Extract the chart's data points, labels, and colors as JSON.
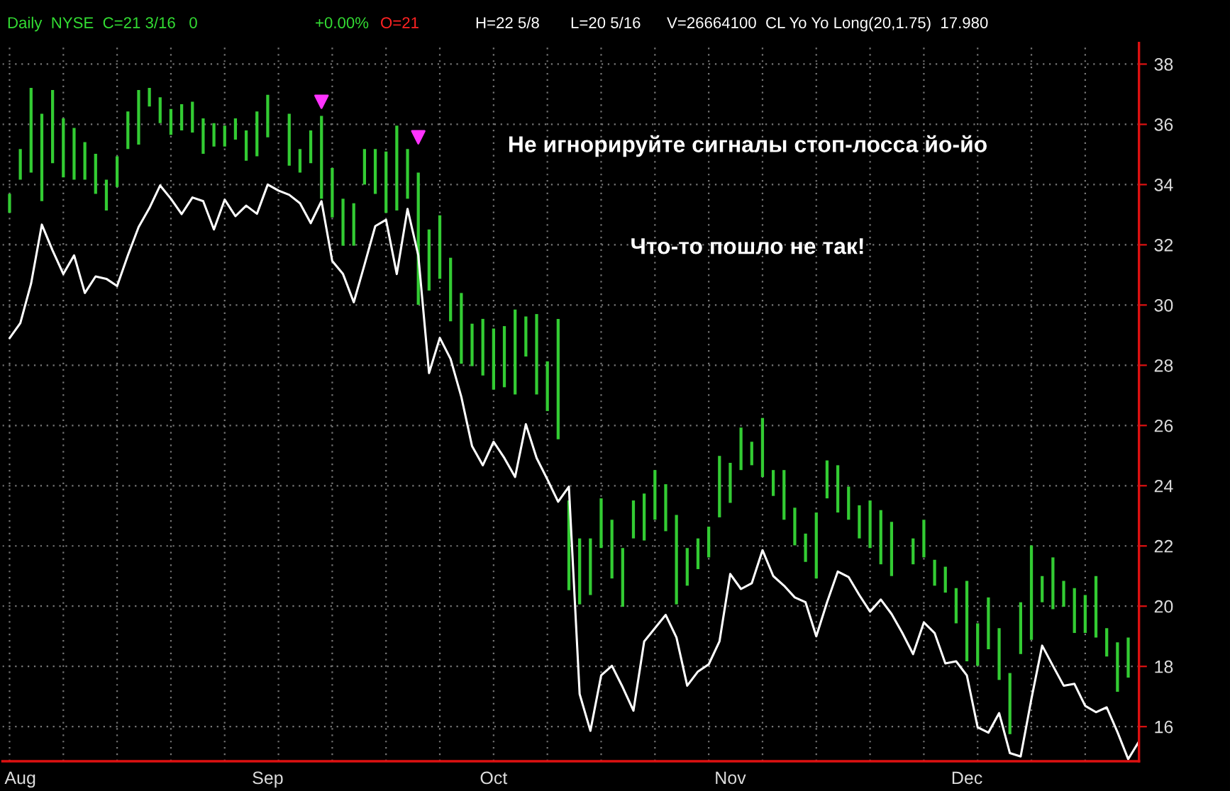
{
  "chart_data": {
    "type": "bar",
    "annotations": [
      "Daily  NYSE  C=21 3/16   0",
      "+0.00%",
      "O=21",
      "H=22 5/8",
      "L=20 5/16",
      "V=26664100  CL Yo Yo Long(20,1.75)  17.980",
      "Не игнорируйте сигналы стоп-лосса йо-йо",
      "Что-то пошло не так!"
    ],
    "categories": [
      null,
      "Aug",
      null,
      null,
      null,
      null,
      null,
      null,
      null,
      null,
      null,
      null,
      null,
      null,
      null,
      null,
      null,
      null,
      null,
      null,
      null,
      null,
      null,
      null,
      "Sep",
      null,
      null,
      null,
      null,
      null,
      null,
      null,
      null,
      null,
      null,
      null,
      null,
      null,
      null,
      null,
      null,
      null,
      null,
      null,
      null,
      "Oct",
      null,
      null,
      null,
      null,
      null,
      null,
      null,
      null,
      null,
      null,
      null,
      null,
      null,
      null,
      null,
      null,
      null,
      null,
      null,
      null,
      null,
      "Nov",
      null,
      null,
      null,
      null,
      null,
      null,
      null,
      null,
      null,
      null,
      null,
      null,
      null,
      null,
      null,
      null,
      null,
      null,
      null,
      null,
      null,
      "Dec",
      null,
      null,
      null,
      null,
      null,
      null,
      null,
      null,
      null,
      null,
      null,
      null,
      null,
      null,
      null,
      null
    ],
    "series": [
      {
        "color": "#33cc33",
        "base": [
          33.06,
          34.16,
          34.4,
          33.45,
          34.71,
          34.24,
          34.16,
          34.16,
          33.69,
          33.14,
          33.92,
          35.18,
          35.33,
          36.59,
          36.04,
          35.65,
          35.8,
          35.73,
          35.02,
          35.26,
          35.26,
          35.49,
          34.79,
          34.94,
          35.57,
          null,
          34.63,
          34.4,
          34.71,
          33.53,
          32.91,
          31.97,
          31.97,
          34.0,
          33.69,
          33.06,
          33.14,
          33.53,
          30.01,
          30.48,
          30.87,
          29.46,
          28.05,
          27.97,
          27.66,
          27.19,
          27.27,
          27.03,
          28.29,
          27.03,
          26.48,
          25.54,
          20.53,
          20.06,
          20.37,
          21.93,
          20.92,
          19.98,
          22.25,
          22.18,
          22.87,
          22.49,
          20.06,
          20.68,
          21.23,
          21.62,
          22.95,
          23.43,
          24.52,
          24.68,
          24.29,
          23.66,
          22.87,
          22.02,
          21.47,
          20.92,
          23.58,
          23.11,
          22.87,
          22.25,
          21.93,
          21.39,
          21.0,
          null,
          21.39,
          21.62,
          20.68,
          20.45,
          19.43,
          18.17,
          18.02,
          18.57,
          17.55,
          15.75,
          18.41,
          18.88,
          20.13,
          19.9,
          19.98,
          19.11,
          19.11,
          18.96,
          18.33,
          17.16,
          17.63,
          null
        ],
        "values": [
          0.63,
          1.02,
          2.81,
          2.9,
          2.43,
          1.96,
          1.72,
          1.25,
          1.33,
          1.02,
          1.02,
          1.25,
          1.81,
          0.62,
          0.86,
          0.86,
          0.87,
          1.02,
          1.18,
          0.78,
          0.7,
          0.71,
          1.01,
          1.49,
          1.41,
          null,
          1.72,
          0.78,
          1.09,
          2.75,
          1.64,
          1.56,
          1.41,
          1.18,
          1.49,
          2.04,
          2.82,
          1.65,
          4.39,
          2.03,
          2.11,
          2.11,
          2.35,
          1.41,
          1.88,
          2.03,
          2.03,
          2.82,
          1.33,
          2.67,
          1.65,
          4.0,
          2.98,
          2.19,
          1.88,
          1.65,
          1.95,
          1.95,
          1.26,
          1.56,
          1.65,
          1.56,
          2.97,
          1.25,
          1.02,
          1.02,
          2.04,
          1.33,
          1.41,
          0.78,
          1.96,
          0.86,
          1.65,
          1.25,
          0.94,
          2.19,
          1.26,
          1.57,
          1.1,
          1.1,
          1.58,
          1.8,
          1.8,
          null,
          0.86,
          1.25,
          0.86,
          0.86,
          1.17,
          2.67,
          1.41,
          1.72,
          1.72,
          2.03,
          1.72,
          3.14,
          0.87,
          1.72,
          0.86,
          1.49,
          1.26,
          2.04,
          0.94,
          1.64,
          1.33,
          null
        ]
      },
      {
        "type": "line",
        "color": "#ffffff",
        "values": [
          28.9,
          29.4,
          30.71,
          32.67,
          31.81,
          31.03,
          31.65,
          30.4,
          30.95,
          30.87,
          30.63,
          31.65,
          32.59,
          33.22,
          33.97,
          33.53,
          33.02,
          33.57,
          33.45,
          32.51,
          33.5,
          32.95,
          33.3,
          33.03,
          34.0,
          33.8,
          33.66,
          33.38,
          32.72,
          33.45,
          31.46,
          31.03,
          30.09,
          31.34,
          32.62,
          32.83,
          31.03,
          33.19,
          31.65,
          27.74,
          28.91,
          28.21,
          26.95,
          25.31,
          24.68,
          25.46,
          24.92,
          24.29,
          26.04,
          24.92,
          24.21,
          23.47,
          23.97,
          17.08,
          15.86,
          17.7,
          18.02,
          17.31,
          16.53,
          18.83,
          19.27,
          19.71,
          18.96,
          17.36,
          17.83,
          18.07,
          18.83,
          21.07,
          20.57,
          20.76,
          21.86,
          21.0,
          20.68,
          20.29,
          20.13,
          19.0,
          20.13,
          21.15,
          20.97,
          20.37,
          19.82,
          20.22,
          19.74,
          19.11,
          18.41,
          19.46,
          19.11,
          18.1,
          18.17,
          17.7,
          15.98,
          15.8,
          16.45,
          15.12,
          15.01,
          16.92,
          18.69,
          18.02,
          17.36,
          17.42,
          16.69,
          16.48,
          16.64,
          15.82,
          14.92,
          15.51
        ]
      },
      {
        "type": "scatter",
        "color": "#ff33ff",
        "marker": "triangle",
        "values": [
          null,
          null,
          null,
          null,
          null,
          null,
          null,
          null,
          null,
          null,
          null,
          null,
          null,
          null,
          null,
          null,
          null,
          null,
          null,
          null,
          null,
          null,
          null,
          null,
          null,
          null,
          null,
          null,
          null,
          36.75,
          null,
          null,
          null,
          null,
          null,
          null,
          null,
          null,
          35.57,
          null,
          null,
          null,
          null,
          null,
          null,
          null,
          null,
          null,
          null,
          null,
          null,
          null,
          null,
          null,
          null,
          null,
          null,
          null,
          null,
          null,
          null,
          null,
          null,
          null,
          null,
          null,
          null,
          null,
          null,
          null,
          null,
          null,
          null,
          null,
          null,
          null,
          null,
          null,
          null,
          null,
          null,
          null,
          null,
          null,
          null,
          null,
          null,
          null,
          null,
          null,
          null,
          null,
          null,
          null,
          null,
          null,
          null,
          null,
          null,
          null,
          null,
          null,
          null,
          null,
          null,
          null
        ]
      }
    ],
    "ylim": [
      14.85,
      38.7
    ],
    "yticks": [
      16,
      18,
      20,
      22,
      24,
      26,
      28,
      30,
      32,
      34,
      36,
      38
    ],
    "grid": true,
    "legend": false
  }
}
